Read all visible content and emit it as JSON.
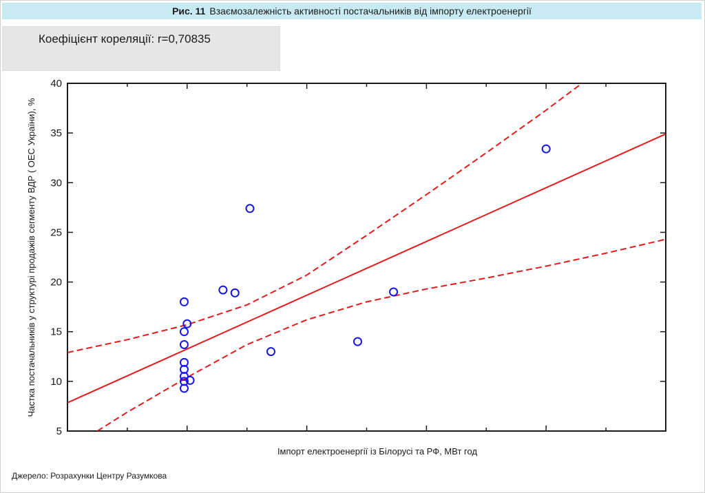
{
  "figure": {
    "number": "Рис. 11",
    "title": "Взаємозалежність активності постачальників  від імпорту електроенергії"
  },
  "correlation_text": "Коефіцієнт кореляції: r=0,70835",
  "source_text": "Джерело: Розрахунки Центру Разумкова",
  "colors": {
    "title_bg": "#c8ebf3",
    "corr_bg": "#e6e6e6",
    "points": "#1515e6",
    "fit": "#e31a1a"
  },
  "chart_data": {
    "type": "scatter",
    "xlabel": "Імпорт електроенергії із Білорусі та РФ, МВт год",
    "ylabel": "Частка постачальників у структурі продажів сегменту ВДР ( ОЕС України), %",
    "ylim": [
      5,
      40
    ],
    "y_ticks": [
      "5",
      "10",
      "15",
      "20",
      "25",
      "30",
      "35",
      "40"
    ],
    "x_tick_labels_shown": false,
    "grid": false,
    "points_units_note": "",
    "x_scale": "unlabeled",
    "xlim": [
      0,
      10
    ],
    "points": [
      {
        "x": 1.95,
        "y": 18.0
      },
      {
        "x": 1.95,
        "y": 15.0
      },
      {
        "x": 2.0,
        "y": 15.8
      },
      {
        "x": 1.95,
        "y": 13.7
      },
      {
        "x": 1.95,
        "y": 11.9
      },
      {
        "x": 1.95,
        "y": 11.2
      },
      {
        "x": 1.95,
        "y": 10.5
      },
      {
        "x": 1.95,
        "y": 10.0
      },
      {
        "x": 1.95,
        "y": 9.3
      },
      {
        "x": 2.05,
        "y": 10.1
      },
      {
        "x": 2.6,
        "y": 19.2
      },
      {
        "x": 2.8,
        "y": 18.9
      },
      {
        "x": 3.05,
        "y": 27.4
      },
      {
        "x": 3.4,
        "y": 13.0
      },
      {
        "x": 4.85,
        "y": 14.0
      },
      {
        "x": 5.45,
        "y": 19.0
      },
      {
        "x": 8.0,
        "y": 33.4
      }
    ],
    "fit_line": {
      "x": [
        0,
        10
      ],
      "y": [
        7.85,
        34.9
      ]
    },
    "confidence_band": {
      "upper": {
        "x": [
          0,
          1,
          2,
          3,
          4,
          5,
          6,
          7,
          8,
          8.6
        ],
        "y": [
          12.9,
          14.2,
          15.7,
          17.7,
          20.7,
          24.7,
          28.8,
          33.0,
          37.3,
          40.0
        ]
      },
      "lower": {
        "x": [
          0.5,
          1,
          2,
          3,
          4,
          5,
          6,
          7,
          8,
          9,
          10
        ],
        "y": [
          5.0,
          6.9,
          10.4,
          13.7,
          16.2,
          18.0,
          19.3,
          20.4,
          21.6,
          22.9,
          24.3
        ]
      }
    }
  }
}
